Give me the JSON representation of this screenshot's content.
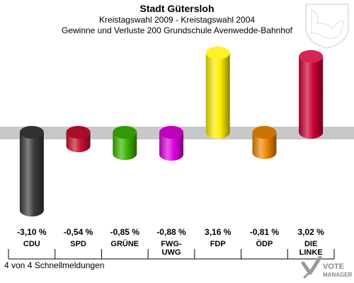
{
  "header": {
    "title": "Stadt Gütersloh",
    "subtitle": "Kreistagswahl 2009 - Kreistagswahl 2004",
    "subtitle2": "Gewinne und Verluste 200 Grundschule Avenwedde-Bahnhof"
  },
  "footer": {
    "text": "4 von 4 Schnellmeldungen"
  },
  "logo": {
    "line1": "VOTE",
    "line2": "MANAGER",
    "icon": "crest-icon"
  },
  "colors": {
    "CDU": "#3a3a3a",
    "SPD": "#c8102e",
    "GRÜNE": "#3cb400",
    "FWG-UWG": "#e000e0",
    "FDP": "#ffee00",
    "ÖDP": "#ee8800",
    "DIE LINKE": "#cc0033",
    "band": "#c8c8c8"
  },
  "chart_data": {
    "type": "bar",
    "categories": [
      "CDU",
      "SPD",
      "GRÜNE",
      "FWG-UWG",
      "FDP",
      "ÖDP",
      "DIE LINKE"
    ],
    "category_lines": [
      [
        "CDU"
      ],
      [
        "SPD"
      ],
      [
        "GRÜNE"
      ],
      [
        "FWG-",
        "UWG"
      ],
      [
        "FDP"
      ],
      [
        "ÖDP"
      ],
      [
        "DIE",
        "LINKE"
      ]
    ],
    "values": [
      -3.1,
      -0.54,
      -0.85,
      -0.88,
      3.16,
      -0.81,
      3.02
    ],
    "labels": [
      "-3,10 %",
      "-0,54 %",
      "-0,85 %",
      "-0,88 %",
      "3,16 %",
      "-0,81 %",
      "3,02 %"
    ],
    "title": "Stadt Gütersloh",
    "ylim": [
      -3.3,
      3.3
    ],
    "grid": false
  }
}
